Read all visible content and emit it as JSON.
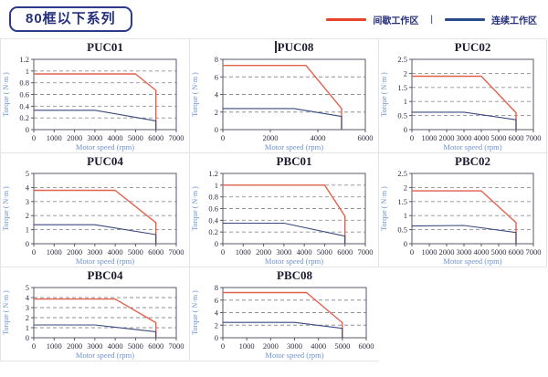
{
  "header": {
    "badge": "80框以下系列",
    "legend": {
      "separator": "|",
      "items": [
        {
          "label": "间歇工作区",
          "color": "#e8432b"
        },
        {
          "label": "连续工作区",
          "color": "#2b4a8b"
        }
      ]
    }
  },
  "colors": {
    "intermittent_line": "#e2614d",
    "continuous_line": "#3b4a7e",
    "frame": "#5a5a68",
    "gridline": "#909098",
    "tick_text": "#2e2e40",
    "axis_label_text": "#6d93cd",
    "title_text": "#1c1c30",
    "cell_border": "#e4e4e8"
  },
  "chart_data": [
    {
      "type": "line",
      "title": "PUC01",
      "cursor": false,
      "xlabel": "Motor speed (rpm)",
      "ylabel": "Torque ( N·m )",
      "xlim": [
        0,
        7000
      ],
      "ylim": [
        0,
        1.2
      ],
      "xticks": [
        0,
        1000,
        2000,
        3000,
        4000,
        5000,
        6000,
        7000
      ],
      "yticks": [
        0,
        0.2,
        0.4,
        0.6,
        0.8,
        1,
        1.2
      ],
      "grid": true,
      "legend_position": "none",
      "series": [
        {
          "name": "间歇工作区",
          "color": "#e2614d",
          "points": [
            [
              0,
              0.95
            ],
            [
              5000,
              0.95
            ],
            [
              6000,
              0.67
            ],
            [
              6000,
              0
            ]
          ]
        },
        {
          "name": "连续工作区",
          "color": "#3b4a7e",
          "points": [
            [
              0,
              0.33
            ],
            [
              3000,
              0.33
            ],
            [
              6000,
              0.15
            ],
            [
              6000,
              0
            ]
          ]
        }
      ]
    },
    {
      "type": "line",
      "title": "PUC08",
      "cursor": true,
      "xlabel": "Motor speed (rpm)",
      "ylabel": "Torque ( N·m )",
      "xlim": [
        0,
        6000
      ],
      "ylim": [
        0,
        8
      ],
      "xticks": [
        0,
        2000,
        4000,
        6000
      ],
      "yticks": [
        0,
        2,
        4,
        6,
        8
      ],
      "grid": true,
      "legend_position": "none",
      "series": [
        {
          "name": "间歇工作区",
          "color": "#e2614d",
          "points": [
            [
              0,
              7.3
            ],
            [
              3500,
              7.3
            ],
            [
              5000,
              2.4
            ],
            [
              5000,
              0
            ]
          ]
        },
        {
          "name": "连续工作区",
          "color": "#3b4a7e",
          "points": [
            [
              0,
              2.4
            ],
            [
              3000,
              2.4
            ],
            [
              5000,
              1.5
            ],
            [
              5000,
              0
            ]
          ]
        }
      ]
    },
    {
      "type": "line",
      "title": "PUC02",
      "cursor": false,
      "xlabel": "Motor speed (rpm)",
      "ylabel": "Torque ( N·m )",
      "xlim": [
        0,
        7000
      ],
      "ylim": [
        0,
        2.5
      ],
      "xticks": [
        0,
        1000,
        2000,
        3000,
        4000,
        5000,
        6000,
        7000
      ],
      "yticks": [
        0,
        0.5,
        1,
        1.5,
        2,
        2.5
      ],
      "grid": true,
      "legend_position": "none",
      "series": [
        {
          "name": "间歇工作区",
          "color": "#e2614d",
          "points": [
            [
              0,
              1.9
            ],
            [
              4000,
              1.9
            ],
            [
              6000,
              0.6
            ],
            [
              6000,
              0
            ]
          ]
        },
        {
          "name": "连续工作区",
          "color": "#3b4a7e",
          "points": [
            [
              0,
              0.62
            ],
            [
              3000,
              0.62
            ],
            [
              6000,
              0.35
            ],
            [
              6000,
              0
            ]
          ]
        }
      ]
    },
    {
      "type": "line",
      "title": "PUC04",
      "cursor": false,
      "xlabel": "Motor speed (rpm)",
      "ylabel": "Torque ( N·m )",
      "xlim": [
        0,
        7000
      ],
      "ylim": [
        0,
        5
      ],
      "xticks": [
        0,
        1000,
        2000,
        3000,
        4000,
        5000,
        6000,
        7000
      ],
      "yticks": [
        0,
        1,
        2,
        3,
        4,
        5
      ],
      "grid": true,
      "legend_position": "none",
      "series": [
        {
          "name": "间歇工作区",
          "color": "#e2614d",
          "points": [
            [
              0,
              3.8
            ],
            [
              4000,
              3.8
            ],
            [
              6000,
              1.5
            ],
            [
              6000,
              0
            ]
          ]
        },
        {
          "name": "连续工作区",
          "color": "#3b4a7e",
          "points": [
            [
              0,
              1.35
            ],
            [
              3000,
              1.35
            ],
            [
              6000,
              0.65
            ],
            [
              6000,
              0
            ]
          ]
        }
      ]
    },
    {
      "type": "line",
      "title": "PBC01",
      "cursor": false,
      "xlabel": "Motor speed (rpm)",
      "ylabel": "Torque ( N·m )",
      "xlim": [
        0,
        7000
      ],
      "ylim": [
        0,
        1.2
      ],
      "xticks": [
        0,
        1000,
        2000,
        3000,
        4000,
        5000,
        6000,
        7000
      ],
      "yticks": [
        0,
        0.2,
        0.4,
        0.6,
        0.8,
        1,
        1.2
      ],
      "grid": true,
      "legend_position": "none",
      "series": [
        {
          "name": "间歇工作区",
          "color": "#e2614d",
          "points": [
            [
              0,
              1.0
            ],
            [
              5000,
              1.0
            ],
            [
              6000,
              0.47
            ],
            [
              6000,
              0
            ]
          ]
        },
        {
          "name": "连续工作区",
          "color": "#3b4a7e",
          "points": [
            [
              0,
              0.35
            ],
            [
              3000,
              0.35
            ],
            [
              6000,
              0.13
            ],
            [
              6000,
              0
            ]
          ]
        }
      ]
    },
    {
      "type": "line",
      "title": "PBC02",
      "cursor": false,
      "xlabel": "Motor speed (rpm)",
      "ylabel": "Torque ( N·m )",
      "xlim": [
        0,
        7000
      ],
      "ylim": [
        0,
        2.5
      ],
      "xticks": [
        0,
        1000,
        2000,
        3000,
        4000,
        5000,
        6000,
        7000
      ],
      "yticks": [
        0,
        0.5,
        1,
        1.5,
        2,
        2.5
      ],
      "grid": true,
      "legend_position": "none",
      "series": [
        {
          "name": "间歇工作区",
          "color": "#e2614d",
          "points": [
            [
              0,
              1.88
            ],
            [
              4000,
              1.88
            ],
            [
              6000,
              0.75
            ],
            [
              6000,
              0
            ]
          ]
        },
        {
          "name": "连续工作区",
          "color": "#3b4a7e",
          "points": [
            [
              0,
              0.63
            ],
            [
              3000,
              0.65
            ],
            [
              6000,
              0.4
            ],
            [
              6000,
              0
            ]
          ]
        }
      ]
    },
    {
      "type": "line",
      "title": "PBC04",
      "cursor": false,
      "xlabel": "Motor speed (rpm)",
      "ylabel": "Torque ( N·m )",
      "xlim": [
        0,
        7000
      ],
      "ylim": [
        0,
        5
      ],
      "xticks": [
        0,
        1000,
        2000,
        3000,
        4000,
        5000,
        6000,
        7000
      ],
      "yticks": [
        0,
        1,
        2,
        3,
        4,
        5
      ],
      "grid": true,
      "legend_position": "none",
      "series": [
        {
          "name": "间歇工作区",
          "color": "#e2614d",
          "points": [
            [
              0,
              3.85
            ],
            [
              4000,
              3.85
            ],
            [
              6000,
              1.5
            ],
            [
              6000,
              0
            ]
          ]
        },
        {
          "name": "连续工作区",
          "color": "#3b4a7e",
          "points": [
            [
              0,
              1.27
            ],
            [
              3000,
              1.27
            ],
            [
              6000,
              0.6
            ],
            [
              6000,
              0
            ]
          ]
        }
      ]
    },
    {
      "type": "line",
      "title": "PBC08",
      "cursor": false,
      "xlabel": "Motor speed (rpm)",
      "ylabel": "Torque ( N·m )",
      "xlim": [
        0,
        6000
      ],
      "ylim": [
        0,
        8
      ],
      "xticks": [
        0,
        1000,
        2000,
        3000,
        4000,
        5000,
        6000
      ],
      "yticks": [
        0,
        2,
        4,
        6,
        8
      ],
      "grid": true,
      "legend_position": "none",
      "series": [
        {
          "name": "间歇工作区",
          "color": "#e2614d",
          "points": [
            [
              0,
              7.2
            ],
            [
              3500,
              7.2
            ],
            [
              5000,
              2.4
            ],
            [
              5000,
              0
            ]
          ]
        },
        {
          "name": "连续工作区",
          "color": "#3b4a7e",
          "points": [
            [
              0,
              2.45
            ],
            [
              3000,
              2.45
            ],
            [
              5000,
              1.5
            ],
            [
              5000,
              0
            ]
          ]
        }
      ]
    }
  ]
}
